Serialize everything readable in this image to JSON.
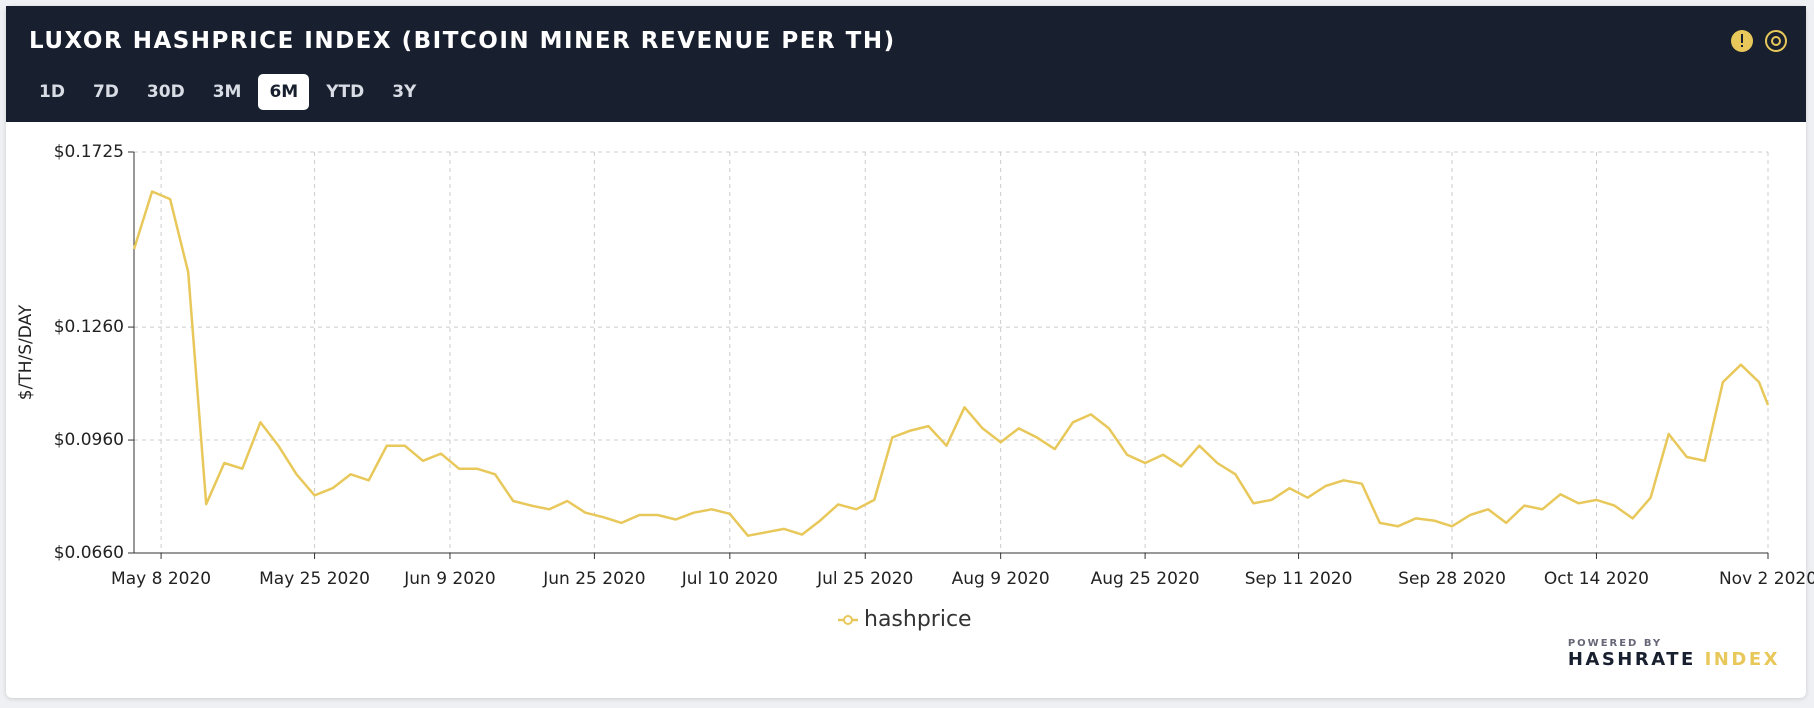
{
  "toolbar": {
    "title": "LUXOR HASHPRICE INDEX (BITCOIN MINER REVENUE PER TH)",
    "ranges": [
      "1D",
      "7D",
      "30D",
      "3M",
      "6M",
      "YTD",
      "3Y"
    ],
    "active": 4
  },
  "footer": {
    "powered": "POWERED BY",
    "brand": "HASHRATE",
    "brand2": "INDEX"
  },
  "chart_data": {
    "type": "line",
    "ylabel": "$/TH/S/DAY",
    "xlim": [
      "2020-05-05",
      "2020-11-02"
    ],
    "xticks": [
      {
        "value": "2020-05-08",
        "label": "May 8 2020"
      },
      {
        "value": "2020-05-25",
        "label": "May 25 2020"
      },
      {
        "value": "2020-06-09",
        "label": "Jun 9 2020"
      },
      {
        "value": "2020-06-25",
        "label": "Jun 25 2020"
      },
      {
        "value": "2020-07-10",
        "label": "Jul 10 2020"
      },
      {
        "value": "2020-07-25",
        "label": "Jul 25 2020"
      },
      {
        "value": "2020-08-09",
        "label": "Aug 9 2020"
      },
      {
        "value": "2020-08-25",
        "label": "Aug 25 2020"
      },
      {
        "value": "2020-09-11",
        "label": "Sep 11 2020"
      },
      {
        "value": "2020-09-28",
        "label": "Sep 28 2020"
      },
      {
        "value": "2020-10-14",
        "label": "Oct 14 2020"
      },
      {
        "value": "2020-11-02",
        "label": "Nov 2 2020"
      }
    ],
    "ylim": [
      0.066,
      0.1725
    ],
    "yticks": [
      {
        "value": 0.066,
        "label": "$0.0660"
      },
      {
        "value": 0.096,
        "label": "$0.0960"
      },
      {
        "value": 0.126,
        "label": "$0.1260"
      },
      {
        "value": 0.1725,
        "label": "$0.1725"
      }
    ],
    "grid": true,
    "x": [
      "2020-05-05",
      "2020-05-07",
      "2020-05-09",
      "2020-05-11",
      "2020-05-13",
      "2020-05-15",
      "2020-05-17",
      "2020-05-19",
      "2020-05-21",
      "2020-05-23",
      "2020-05-25",
      "2020-05-27",
      "2020-05-29",
      "2020-05-31",
      "2020-06-02",
      "2020-06-04",
      "2020-06-06",
      "2020-06-08",
      "2020-06-10",
      "2020-06-12",
      "2020-06-14",
      "2020-06-16",
      "2020-06-18",
      "2020-06-20",
      "2020-06-22",
      "2020-06-24",
      "2020-06-26",
      "2020-06-28",
      "2020-06-30",
      "2020-07-02",
      "2020-07-04",
      "2020-07-06",
      "2020-07-08",
      "2020-07-10",
      "2020-07-12",
      "2020-07-14",
      "2020-07-16",
      "2020-07-18",
      "2020-07-20",
      "2020-07-22",
      "2020-07-24",
      "2020-07-26",
      "2020-07-28",
      "2020-07-30",
      "2020-08-01",
      "2020-08-03",
      "2020-08-05",
      "2020-08-07",
      "2020-08-09",
      "2020-08-11",
      "2020-08-13",
      "2020-08-15",
      "2020-08-17",
      "2020-08-19",
      "2020-08-21",
      "2020-08-23",
      "2020-08-25",
      "2020-08-27",
      "2020-08-29",
      "2020-08-31",
      "2020-09-02",
      "2020-09-04",
      "2020-09-06",
      "2020-09-08",
      "2020-09-10",
      "2020-09-12",
      "2020-09-14",
      "2020-09-16",
      "2020-09-18",
      "2020-09-20",
      "2020-09-22",
      "2020-09-24",
      "2020-09-26",
      "2020-09-28",
      "2020-09-30",
      "2020-10-02",
      "2020-10-04",
      "2020-10-06",
      "2020-10-08",
      "2020-10-10",
      "2020-10-12",
      "2020-10-14",
      "2020-10-16",
      "2020-10-18",
      "2020-10-20",
      "2020-10-22",
      "2020-10-24",
      "2020-10-26",
      "2020-10-28",
      "2020-10-30",
      "2020-11-01",
      "2020-11-02"
    ],
    "series": [
      {
        "name": "hashprice",
        "color": "#e8c85a",
        "values": [
          0.1467,
          0.162,
          0.16,
          0.1406,
          0.079,
          0.0899,
          0.0884,
          0.1007,
          0.0945,
          0.0869,
          0.0813,
          0.0832,
          0.0869,
          0.0853,
          0.0945,
          0.0945,
          0.0905,
          0.0924,
          0.0884,
          0.0884,
          0.0869,
          0.0798,
          0.0786,
          0.0776,
          0.0798,
          0.0767,
          0.0755,
          0.074,
          0.0761,
          0.0761,
          0.0749,
          0.0767,
          0.0776,
          0.0764,
          0.0706,
          0.0715,
          0.0724,
          0.0709,
          0.0746,
          0.0789,
          0.0776,
          0.0801,
          0.0967,
          0.0985,
          0.0997,
          0.0945,
          0.1047,
          0.0991,
          0.0954,
          0.0991,
          0.0967,
          0.0936,
          0.1007,
          0.1028,
          0.0991,
          0.0921,
          0.0899,
          0.0921,
          0.089,
          0.0945,
          0.0899,
          0.0869,
          0.0792,
          0.0801,
          0.0832,
          0.0807,
          0.0838,
          0.0853,
          0.0844,
          0.074,
          0.0731,
          0.0752,
          0.0746,
          0.0731,
          0.0761,
          0.0776,
          0.074,
          0.0786,
          0.0776,
          0.0816,
          0.0792,
          0.0801,
          0.0786,
          0.0752,
          0.0807,
          0.0976,
          0.0915,
          0.0905,
          0.1114,
          0.116,
          0.1114,
          0.1053
        ]
      }
    ]
  }
}
